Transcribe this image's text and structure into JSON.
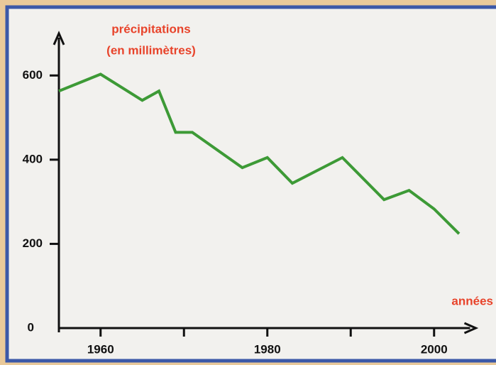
{
  "chart_data": {
    "type": "line",
    "y_label": [
      "précipitations",
      "(en millimètres)"
    ],
    "x_label": "années",
    "x": [
      1955,
      1960,
      1965,
      1967,
      1969,
      1971,
      1977,
      1980,
      1983,
      1989,
      1994,
      1997,
      2000,
      2003
    ],
    "series": [
      {
        "name": "précipitations",
        "color": "#3d9a36",
        "values": [
          563,
          603,
          541,
          563,
          465,
          465,
          381,
          405,
          344,
          405,
          305,
          327,
          283,
          224
        ]
      }
    ],
    "xlim": [
      1955,
      2005
    ],
    "xticks": [
      1960,
      1980,
      2000
    ],
    "minor_xticks": [
      1970,
      1990
    ],
    "ylim": [
      0,
      700
    ],
    "yticks": [
      0,
      200,
      400,
      600
    ],
    "label_color": "#e8432a",
    "grid": false
  }
}
